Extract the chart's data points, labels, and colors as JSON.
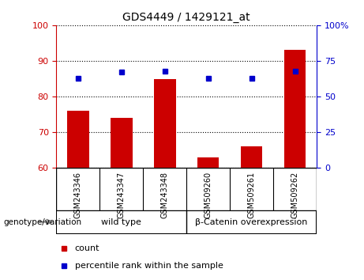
{
  "title": "GDS4449 / 1429121_at",
  "categories": [
    "GSM243346",
    "GSM243347",
    "GSM243348",
    "GSM509260",
    "GSM509261",
    "GSM509262"
  ],
  "bar_values": [
    76,
    74,
    85,
    63,
    66,
    93
  ],
  "percentile_values": [
    63,
    67,
    68,
    63,
    63,
    68
  ],
  "bar_color": "#cc0000",
  "percentile_color": "#0000cc",
  "ylim_left": [
    60,
    100
  ],
  "ylim_right": [
    0,
    100
  ],
  "yticks_left": [
    60,
    70,
    80,
    90,
    100
  ],
  "yticks_right": [
    0,
    25,
    50,
    75,
    100
  ],
  "ytick_labels_right": [
    "0",
    "25",
    "50",
    "75",
    "100%"
  ],
  "group1_label": "wild type",
  "group2_label": "β-Catenin overexpression",
  "group_area_color": "#90ee90",
  "tick_label_area_color": "#d3d3d3",
  "axis_bg_color": "#ffffff",
  "group_label_prefix": "genotype/variation",
  "legend_count_label": "count",
  "legend_percentile_label": "percentile rank within the sample",
  "bar_width": 0.5
}
